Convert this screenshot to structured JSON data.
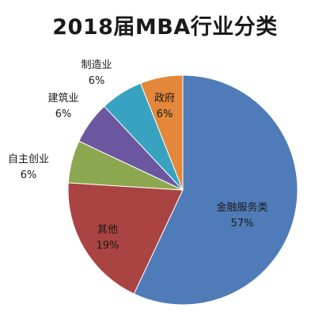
{
  "chart_data": {
    "type": "pie",
    "title": "2018届MBA行业分类",
    "start": "top, clockwise",
    "colors": [
      "#4F7CB8",
      "#A94442",
      "#8BA850",
      "#6B56A0",
      "#38A3C0",
      "#E4873A"
    ],
    "slices": [
      {
        "label": "金融服务类",
        "value": 57,
        "value_label": "57%",
        "label_position": "inside"
      },
      {
        "label": "其他",
        "value": 19,
        "value_label": "19%",
        "label_position": "inside"
      },
      {
        "label": "自主创业",
        "value": 6,
        "value_label": "6%",
        "label_position": "outside"
      },
      {
        "label": "建筑业",
        "value": 6,
        "value_label": "6%",
        "label_position": "outside"
      },
      {
        "label": "制造业",
        "value": 6,
        "value_label": "6%",
        "label_position": "outside"
      },
      {
        "label": "政府",
        "value": 6,
        "value_label": "6%",
        "label_position": "inside"
      }
    ]
  }
}
